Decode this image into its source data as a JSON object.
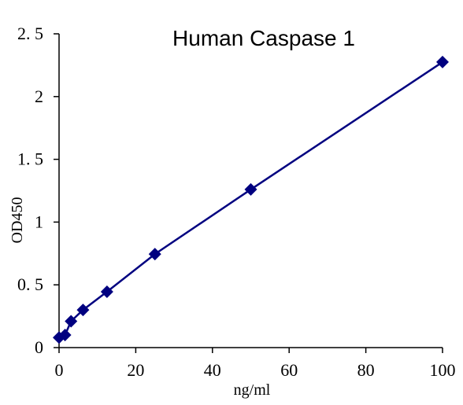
{
  "chart_data": {
    "type": "line",
    "title": "Human Caspase 1",
    "x_label": "ng/ml",
    "y_label": "OD450",
    "series": [
      {
        "name": "OD450",
        "color": "#000080",
        "x": [
          0,
          1.56,
          3.125,
          6.25,
          12.5,
          25,
          50,
          100
        ],
        "values": [
          0.08,
          0.1,
          0.21,
          0.3,
          0.445,
          0.745,
          1.26,
          2.275
        ]
      }
    ],
    "xlim": [
      0,
      100
    ],
    "xticks": [
      0,
      20,
      40,
      60,
      80,
      100
    ],
    "ylim": [
      0,
      2.5
    ],
    "yticks": [
      0,
      {
        "value": 0.5,
        "label": "0. 5"
      },
      1,
      {
        "value": 1.5,
        "label": "1. 5"
      },
      2,
      {
        "value": 2.5,
        "label": "2. 5"
      }
    ]
  }
}
